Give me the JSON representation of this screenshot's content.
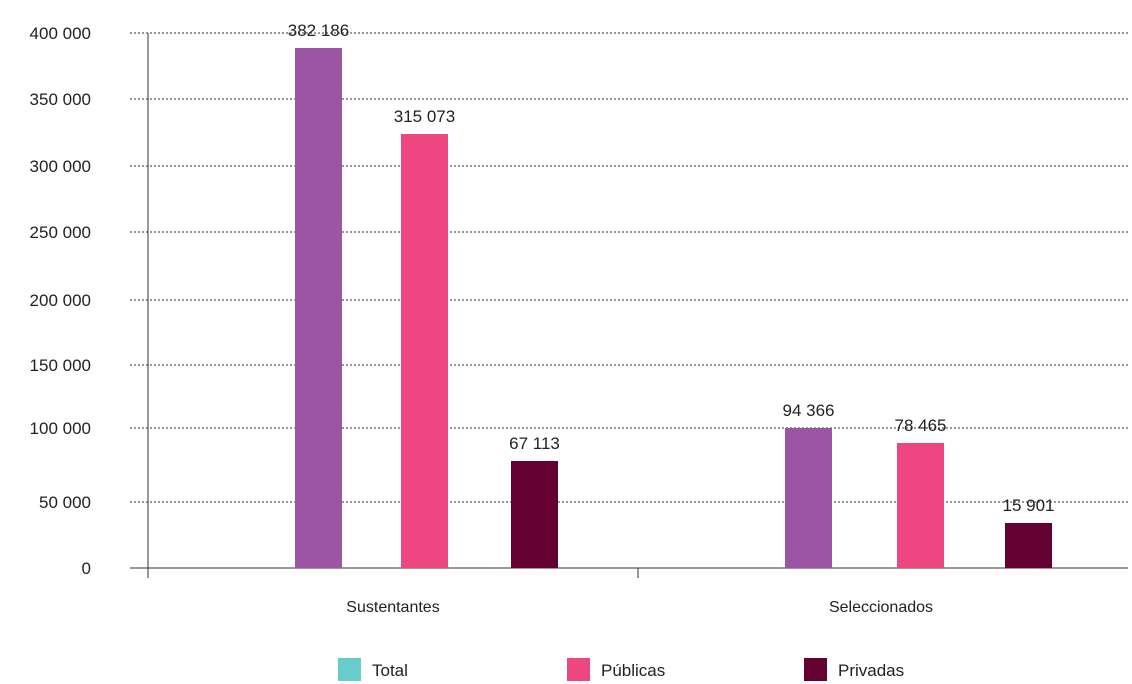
{
  "chart_data": {
    "type": "bar",
    "categories": [
      "Sustentantes",
      "Seleccionados"
    ],
    "series": [
      {
        "name": "Total",
        "values": [
          382186,
          94366
        ],
        "color": "#9b55a2",
        "legend_color": "#66cccc"
      },
      {
        "name": "Públicas",
        "values": [
          315073,
          78465
        ],
        "color": "#ee4681",
        "legend_color": "#ee4681"
      },
      {
        "name": "Privadas",
        "values": [
          67113,
          15901
        ],
        "color": "#640032",
        "legend_color": "#640032"
      }
    ],
    "data_labels": [
      [
        "382 186",
        "94 366"
      ],
      [
        "315 073",
        "78 465"
      ],
      [
        "67 113",
        "15 901"
      ]
    ],
    "y_ticks": [
      {
        "value": 0,
        "label": "0"
      },
      {
        "value": 50000,
        "label": "50 000"
      },
      {
        "value": 100000,
        "label": "100 000"
      },
      {
        "value": 150000,
        "label": "150 000"
      },
      {
        "value": 200000,
        "label": "200 000"
      },
      {
        "value": 250000,
        "label": "250 000"
      },
      {
        "value": 300000,
        "label": "300 000"
      },
      {
        "value": 350000,
        "label": "350 000"
      },
      {
        "value": 400000,
        "label": "400 000"
      }
    ],
    "ylim": [
      0,
      400000
    ],
    "grid": true,
    "grid_style": "dotted",
    "legend_position": "bottom",
    "title": "",
    "xlabel": "",
    "ylabel": ""
  }
}
